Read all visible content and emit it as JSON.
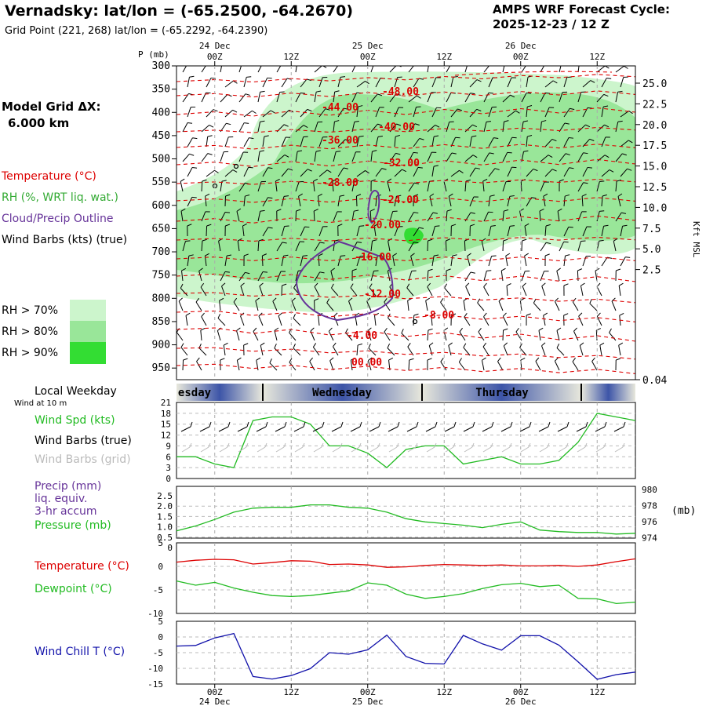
{
  "header": {
    "title": "Vernadsky:  lat/lon = (-65.2500, -64.2670)",
    "grid_point": "Grid Point (221, 268) lat/lon = (-65.2292, -64.2390)",
    "cycle_label": "AMPS WRF Forecast Cycle:",
    "cycle_value": "2025-12-23 / 12  Z"
  },
  "legend": {
    "model_grid_label": "Model Grid ΔX:",
    "model_grid_value": "6.000 km",
    "temperature": "Temperature (°C)",
    "rh": "RH (%, WRT liq. wat.)",
    "cloud": "Cloud/Precip Outline",
    "wind_barbs": "Wind Barbs (kts) (true)",
    "rh70": "RH > 70%",
    "rh80": "RH > 80%",
    "rh90": "RH > 90%",
    "local_weekday": "Local Weekday",
    "wind_at_10m": "Wind at 10 m",
    "wind_spd": "Wind Spd (kts)",
    "wind_barbs_true": "Wind Barbs (true)",
    "wind_barbs_grid": "Wind Barbs (grid)",
    "precip1": "Precip (mm)",
    "precip2": "liq. equiv.",
    "precip3": "3-hr accum",
    "pressure": "Pressure (mb)",
    "temp_bottom": "Temperature (°C)",
    "dewpoint": "Dewpoint (°C)",
    "wind_chill": "Wind Chill T (°C)"
  },
  "colors": {
    "temperature": "#dd0000",
    "rh": "#33aa33",
    "cloud": "#663399",
    "rh70": "#ccf5cc",
    "rh80": "#99e699",
    "rh90": "#33dd33",
    "wind_spd": "#22bb22",
    "pressure": "#22bb22",
    "dewpoint": "#22bb22",
    "wind_chill": "#1111aa",
    "barb_grid": "#bbbbbb"
  },
  "chart_data": [
    {
      "type": "cross-section",
      "ylabel": "P (mb)",
      "y2label": "Kft MSL",
      "pressure_ticks": [
        "300",
        "350",
        "400",
        "450",
        "500",
        "550",
        "600",
        "650",
        "700",
        "750",
        "800",
        "850",
        "900",
        "950"
      ],
      "kft_ticks": [
        "25.0",
        "22.5",
        "20.0",
        "17.5",
        "15.0",
        "12.5",
        "10.0",
        "7.5",
        "5.0",
        "2.5",
        "0.04"
      ],
      "time_ticks_top": [
        "00Z",
        "12Z",
        "00Z",
        "12Z",
        "00Z",
        "12Z"
      ],
      "date_ticks_top": [
        "24 Dec",
        "25 Dec",
        "26 Dec"
      ],
      "isotherm_labels": [
        "-48.00",
        "-44.00",
        "-40.00",
        "-36.00",
        "-32.00",
        "-28.00",
        "-24.00",
        "-20.00",
        "-16.00",
        "-12.00",
        "-8.00",
        "-4.00",
        "00.00"
      ]
    },
    {
      "type": "weekday-bar",
      "days": [
        "esday",
        "Wednesday",
        "Thursday"
      ]
    },
    {
      "type": "line",
      "title": "Wind Spd (kts)",
      "ylim": [
        0,
        21
      ],
      "yticks": [
        "21",
        "18",
        "15",
        "12",
        "9",
        "6",
        "3",
        "0"
      ],
      "x_hours": [
        0,
        3,
        6,
        9,
        12,
        15,
        18,
        21,
        24,
        27,
        30,
        33,
        36,
        39,
        42,
        45,
        48,
        51,
        54,
        57,
        60,
        63,
        66,
        69,
        72
      ],
      "wind_speed": [
        6,
        6,
        4,
        3,
        16,
        17,
        17,
        15,
        9,
        9,
        7,
        3,
        8,
        9,
        9,
        4,
        5,
        6,
        4,
        4,
        5,
        10,
        18,
        17,
        16
      ]
    },
    {
      "type": "line",
      "title": "Precip / Pressure",
      "yticks_left": [
        "2.5",
        "2.0",
        "1.5",
        "1.0",
        "0.5",
        "0"
      ],
      "yticks_right": [
        "980",
        "978",
        "976",
        "974"
      ],
      "right_label": "(mb)",
      "pressure_ylim": [
        974,
        980
      ],
      "pressure": [
        974.9,
        975.5,
        976.3,
        977.2,
        977.7,
        977.8,
        977.8,
        978.1,
        978.1,
        977.8,
        977.7,
        977.2,
        976.4,
        976.0,
        975.8,
        975.6,
        975.3,
        975.7,
        976.0,
        975.0,
        974.8,
        974.7,
        974.7,
        974.5,
        974.6
      ]
    },
    {
      "type": "line",
      "title": "Temperature / Dewpoint",
      "ylim": [
        -10,
        5
      ],
      "yticks": [
        "5",
        "0",
        "-5",
        "-10"
      ],
      "temperature": [
        0.9,
        1.3,
        1.5,
        1.4,
        0.5,
        0.8,
        1.2,
        1.1,
        0.4,
        0.5,
        0.3,
        -0.2,
        -0.1,
        0.2,
        0.4,
        0.3,
        0.2,
        0.3,
        0.1,
        0.1,
        0.2,
        0.0,
        0.3,
        1.0,
        1.6
      ],
      "dewpoint": [
        -3.1,
        -4.0,
        -3.4,
        -4.6,
        -5.5,
        -6.2,
        -6.4,
        -6.2,
        -5.7,
        -5.2,
        -3.5,
        -4.0,
        -5.9,
        -6.8,
        -6.4,
        -5.8,
        -4.7,
        -3.9,
        -3.6,
        -4.3,
        -4.0,
        -6.8,
        -6.9,
        -7.9,
        -7.6
      ]
    },
    {
      "type": "line",
      "title": "Wind Chill T (°C)",
      "ylim": [
        -15,
        5
      ],
      "yticks": [
        "5",
        "0",
        "-5",
        "-10",
        "-15"
      ],
      "wind_chill": [
        -2.9,
        -2.7,
        -0.3,
        1.1,
        -12.6,
        -13.4,
        -12.3,
        -10.1,
        -5.0,
        -5.5,
        -4.1,
        0.6,
        -6.2,
        -8.4,
        -8.6,
        0.5,
        -2.2,
        -4.2,
        0.4,
        0.4,
        -2.6,
        -7.9,
        -13.5,
        -12.0,
        -11.2
      ],
      "time_ticks_bottom": [
        "00Z",
        "12Z",
        "00Z",
        "12Z",
        "00Z",
        "12Z"
      ],
      "date_ticks_bottom": [
        "24 Dec",
        "25 Dec",
        "26 Dec"
      ]
    }
  ]
}
